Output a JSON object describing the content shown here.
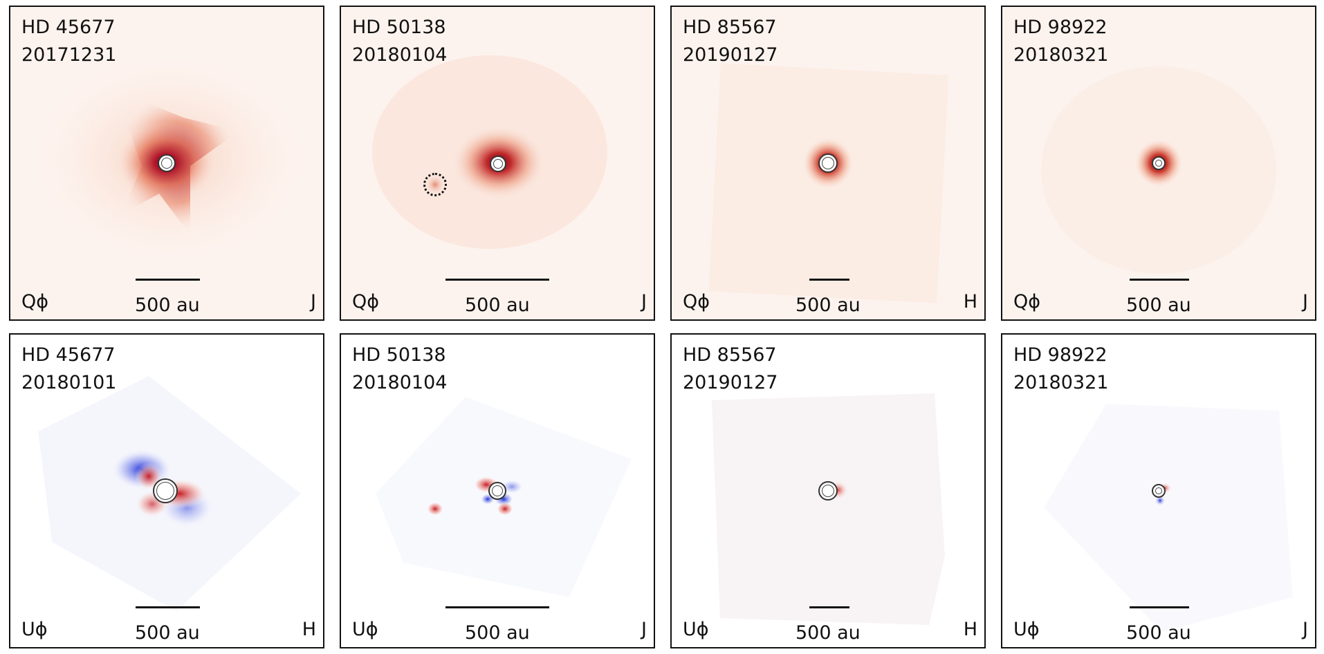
{
  "scale_label": "500 au",
  "colors": {
    "positive": "#b2182b",
    "negative": "#2233dd",
    "background_q": "#fdf3ee",
    "background_u": "#ffffff"
  },
  "panels": [
    {
      "target": "HD 45677",
      "date": "20171231",
      "stokes": "Qϕ",
      "band": "J",
      "type": "q",
      "companion": false
    },
    {
      "target": "HD 50138",
      "date": "20180104",
      "stokes": "Qϕ",
      "band": "J",
      "type": "q",
      "companion": true
    },
    {
      "target": "HD 85567",
      "date": "20190127",
      "stokes": "Qϕ",
      "band": "H",
      "type": "q",
      "companion": false
    },
    {
      "target": "HD 98922",
      "date": "20180321",
      "stokes": "Qϕ",
      "band": "J",
      "type": "q",
      "companion": false
    },
    {
      "target": "HD 45677",
      "date": "20180101",
      "stokes": "Uϕ",
      "band": "H",
      "type": "u",
      "companion": false
    },
    {
      "target": "HD 50138",
      "date": "20180104",
      "stokes": "Uϕ",
      "band": "J",
      "type": "u",
      "companion": true
    },
    {
      "target": "HD 85567",
      "date": "20190127",
      "stokes": "Uϕ",
      "band": "H",
      "type": "u",
      "companion": false
    },
    {
      "target": "HD 98922",
      "date": "20180321",
      "stokes": "Uϕ",
      "band": "J",
      "type": "u",
      "companion": false
    }
  ]
}
